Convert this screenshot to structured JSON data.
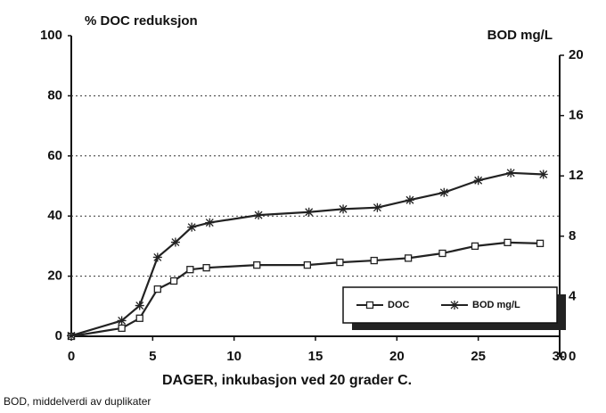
{
  "chart_data": {
    "type": "line",
    "y_label": "% DOC reduksjon",
    "y2_label": "BOD mg/L",
    "x_label": "DAGER, inkubasjon ved 20 grader C.",
    "footnote": "BOD, middelverdi av duplikater",
    "xlim": [
      0,
      30
    ],
    "xticks": [
      0,
      5,
      10,
      15,
      20,
      25,
      30
    ],
    "ylim": [
      0,
      100
    ],
    "yticks": [
      0,
      20,
      40,
      60,
      80,
      100
    ],
    "y2lim": [
      0,
      20
    ],
    "y2ticks": [
      0,
      4,
      8,
      12,
      16,
      20
    ],
    "grid": true,
    "legend": "lower right",
    "series": [
      {
        "name": "DOC",
        "color": "#222222",
        "marker": "square",
        "x": [
          0,
          3.1,
          4.2,
          5.3,
          6.3,
          7.3,
          8.3,
          11.4,
          14.5,
          16.5,
          18.6,
          20.7,
          22.8,
          24.8,
          26.8,
          28.8
        ],
        "values": [
          0,
          2.7,
          6,
          15.7,
          18.4,
          22.2,
          22.8,
          23.7,
          23.7,
          24.6,
          25.2,
          26,
          27.6,
          30,
          31.2,
          30.9
        ]
      },
      {
        "name": "BOD mg/L",
        "color": "#222222",
        "marker": "star",
        "axis": "y2",
        "x": [
          0,
          3.1,
          4.2,
          5.3,
          6.4,
          7.4,
          8.5,
          11.5,
          14.6,
          16.7,
          18.8,
          20.8,
          22.9,
          25,
          27,
          29
        ],
        "values": [
          1.4,
          2.4,
          3.4,
          6.6,
          7.6,
          8.6,
          8.9,
          9.4,
          9.6,
          9.8,
          9.9,
          10.4,
          10.9,
          11.7,
          12.2,
          12.1
        ]
      }
    ]
  }
}
